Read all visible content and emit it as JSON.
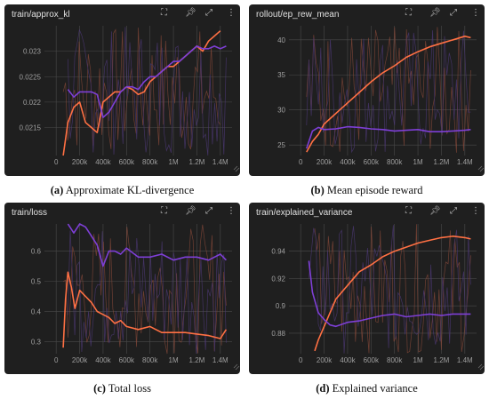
{
  "toolbar_icons": [
    "fit-domain-icon",
    "pin-icon",
    "fullscreen-icon",
    "more-vert-icon"
  ],
  "colors": {
    "panel_bg": "#1f1f1f",
    "grid": "#4a4a4a",
    "tick": "#9e9e9e",
    "series_orange": "#ff7043",
    "series_purple": "#7e3fd6",
    "noise_orange": "#8a4a3a",
    "noise_purple": "#4f3a7a"
  },
  "chart_data": [
    {
      "type": "line",
      "title": "train/approx_kl",
      "caption_label": "(a)",
      "caption_text": "Approximate KL-divergence",
      "xlim": [
        -100000,
        1500000
      ],
      "ylim": [
        0.02095,
        0.0235
      ],
      "xticks": [
        0,
        200000,
        400000,
        600000,
        800000,
        1000000,
        1200000,
        1400000
      ],
      "xtick_labels": [
        "0",
        "200k",
        "400k",
        "600k",
        "800k",
        "1M",
        "1.2M",
        "1.4M"
      ],
      "yticks": [
        0.0215,
        0.022,
        0.0225,
        0.023
      ],
      "ytick_labels": [
        "0.0215",
        "0.022",
        "0.0225",
        "0.023"
      ],
      "series": [
        {
          "color": "#ff7043",
          "x": [
            60000,
            100000,
            150000,
            200000,
            250000,
            300000,
            350000,
            400000,
            450000,
            500000,
            550000,
            600000,
            650000,
            700000,
            750000,
            800000,
            850000,
            900000,
            950000,
            1000000,
            1050000,
            1100000,
            1150000,
            1200000,
            1250000,
            1300000,
            1350000,
            1400000
          ],
          "y": [
            0.0209,
            0.0216,
            0.0219,
            0.022,
            0.0216,
            0.0215,
            0.0214,
            0.022,
            0.0221,
            0.0222,
            0.0222,
            0.0223,
            0.02225,
            0.02215,
            0.0222,
            0.0224,
            0.0225,
            0.0226,
            0.0227,
            0.0227,
            0.0228,
            0.0229,
            0.023,
            0.0231,
            0.023,
            0.0232,
            0.0233,
            0.0234
          ]
        },
        {
          "color": "#7e3fd6",
          "x": [
            100000,
            150000,
            200000,
            250000,
            300000,
            350000,
            400000,
            450000,
            500000,
            550000,
            600000,
            650000,
            700000,
            750000,
            800000,
            850000,
            900000,
            950000,
            1000000,
            1050000,
            1100000,
            1150000,
            1200000,
            1250000,
            1300000,
            1350000,
            1400000,
            1450000
          ],
          "y": [
            0.02225,
            0.0221,
            0.0222,
            0.0222,
            0.0222,
            0.02215,
            0.0217,
            0.0218,
            0.022,
            0.0222,
            0.0223,
            0.0223,
            0.02225,
            0.0224,
            0.0225,
            0.0225,
            0.0226,
            0.0227,
            0.0228,
            0.0228,
            0.0229,
            0.023,
            0.0231,
            0.02305,
            0.02305,
            0.0231,
            0.02305,
            0.0231
          ]
        }
      ]
    },
    {
      "type": "line",
      "title": "rollout/ep_rew_mean",
      "caption_label": "(b)",
      "caption_text": "Mean episode reward",
      "xlim": [
        -100000,
        1500000
      ],
      "ylim": [
        23.5,
        42
      ],
      "xticks": [
        0,
        200000,
        400000,
        600000,
        800000,
        1000000,
        1200000,
        1400000
      ],
      "xtick_labels": [
        "0",
        "200k",
        "400k",
        "600k",
        "800k",
        "1M",
        "1.2M",
        "1.4M"
      ],
      "yticks": [
        25,
        30,
        35,
        40
      ],
      "ytick_labels": [
        "25",
        "30",
        "35",
        "40"
      ],
      "series": [
        {
          "color": "#ff7043",
          "x": [
            50000,
            100000,
            150000,
            200000,
            300000,
            400000,
            500000,
            600000,
            700000,
            800000,
            900000,
            1000000,
            1100000,
            1200000,
            1300000,
            1400000,
            1450000
          ],
          "y": [
            24,
            25.5,
            26.5,
            28,
            29.5,
            31,
            32.5,
            34,
            35.3,
            36.3,
            37.5,
            38.3,
            39,
            39.5,
            40,
            40.5,
            40.3
          ]
        },
        {
          "color": "#7e3fd6",
          "x": [
            50000,
            100000,
            150000,
            200000,
            300000,
            400000,
            500000,
            600000,
            700000,
            800000,
            900000,
            1000000,
            1100000,
            1200000,
            1300000,
            1400000,
            1450000
          ],
          "y": [
            24.5,
            27,
            27.5,
            27.2,
            27.3,
            27.6,
            27.5,
            27.3,
            27.2,
            27.0,
            27.1,
            27.2,
            26.9,
            26.9,
            27.0,
            27.1,
            27.2
          ]
        }
      ]
    },
    {
      "type": "line",
      "title": "train/loss",
      "caption_label": "(c)",
      "caption_text": "Total loss",
      "xlim": [
        -100000,
        1500000
      ],
      "ylim": [
        0.26,
        0.69
      ],
      "xticks": [
        0,
        200000,
        400000,
        600000,
        800000,
        1000000,
        1200000,
        1400000
      ],
      "xtick_labels": [
        "0",
        "200k",
        "400k",
        "600k",
        "800k",
        "1M",
        "1.2M",
        "1.4M"
      ],
      "yticks": [
        0.3,
        0.4,
        0.5,
        0.6
      ],
      "ytick_labels": [
        "0.3",
        "0.4",
        "0.5",
        "0.6"
      ],
      "series": [
        {
          "color": "#ff7043",
          "x": [
            60000,
            80000,
            100000,
            130000,
            160000,
            200000,
            250000,
            300000,
            350000,
            400000,
            450000,
            500000,
            550000,
            600000,
            700000,
            800000,
            900000,
            1000000,
            1100000,
            1200000,
            1300000,
            1400000,
            1450000
          ],
          "y": [
            0.28,
            0.44,
            0.53,
            0.48,
            0.41,
            0.47,
            0.45,
            0.43,
            0.4,
            0.39,
            0.38,
            0.36,
            0.37,
            0.35,
            0.34,
            0.35,
            0.33,
            0.33,
            0.33,
            0.325,
            0.32,
            0.31,
            0.34
          ]
        },
        {
          "color": "#7e3fd6",
          "x": [
            100000,
            150000,
            200000,
            250000,
            300000,
            350000,
            400000,
            450000,
            500000,
            550000,
            600000,
            700000,
            800000,
            900000,
            1000000,
            1100000,
            1200000,
            1300000,
            1400000,
            1450000
          ],
          "y": [
            0.69,
            0.66,
            0.69,
            0.68,
            0.65,
            0.62,
            0.55,
            0.6,
            0.6,
            0.59,
            0.61,
            0.58,
            0.58,
            0.59,
            0.57,
            0.58,
            0.58,
            0.57,
            0.59,
            0.57
          ]
        }
      ]
    },
    {
      "type": "line",
      "title": "train/explained_variance",
      "caption_label": "(d)",
      "caption_text": "Explained variance",
      "xlim": [
        -100000,
        1500000
      ],
      "ylim": [
        0.865,
        0.96
      ],
      "xticks": [
        0,
        200000,
        400000,
        600000,
        800000,
        1000000,
        1200000,
        1400000
      ],
      "xtick_labels": [
        "0",
        "200k",
        "400k",
        "600k",
        "800k",
        "1M",
        "1.2M",
        "1.4M"
      ],
      "yticks": [
        0.88,
        0.9,
        0.92,
        0.94
      ],
      "ytick_labels": [
        "0.88",
        "0.9",
        "0.92",
        "0.94"
      ],
      "series": [
        {
          "color": "#ff7043",
          "x": [
            120000,
            150000,
            200000,
            250000,
            300000,
            400000,
            500000,
            600000,
            700000,
            800000,
            900000,
            1000000,
            1100000,
            1200000,
            1300000,
            1400000,
            1450000
          ],
          "y": [
            0.867,
            0.875,
            0.885,
            0.895,
            0.905,
            0.915,
            0.925,
            0.93,
            0.936,
            0.94,
            0.943,
            0.946,
            0.948,
            0.95,
            0.951,
            0.95,
            0.949
          ]
        },
        {
          "color": "#7e3fd6",
          "x": [
            70000,
            100000,
            150000,
            200000,
            250000,
            300000,
            400000,
            500000,
            600000,
            700000,
            800000,
            900000,
            1000000,
            1100000,
            1200000,
            1300000,
            1400000,
            1450000
          ],
          "y": [
            0.933,
            0.91,
            0.895,
            0.89,
            0.886,
            0.885,
            0.888,
            0.889,
            0.891,
            0.893,
            0.894,
            0.892,
            0.893,
            0.894,
            0.893,
            0.894,
            0.894,
            0.894
          ]
        }
      ]
    }
  ]
}
